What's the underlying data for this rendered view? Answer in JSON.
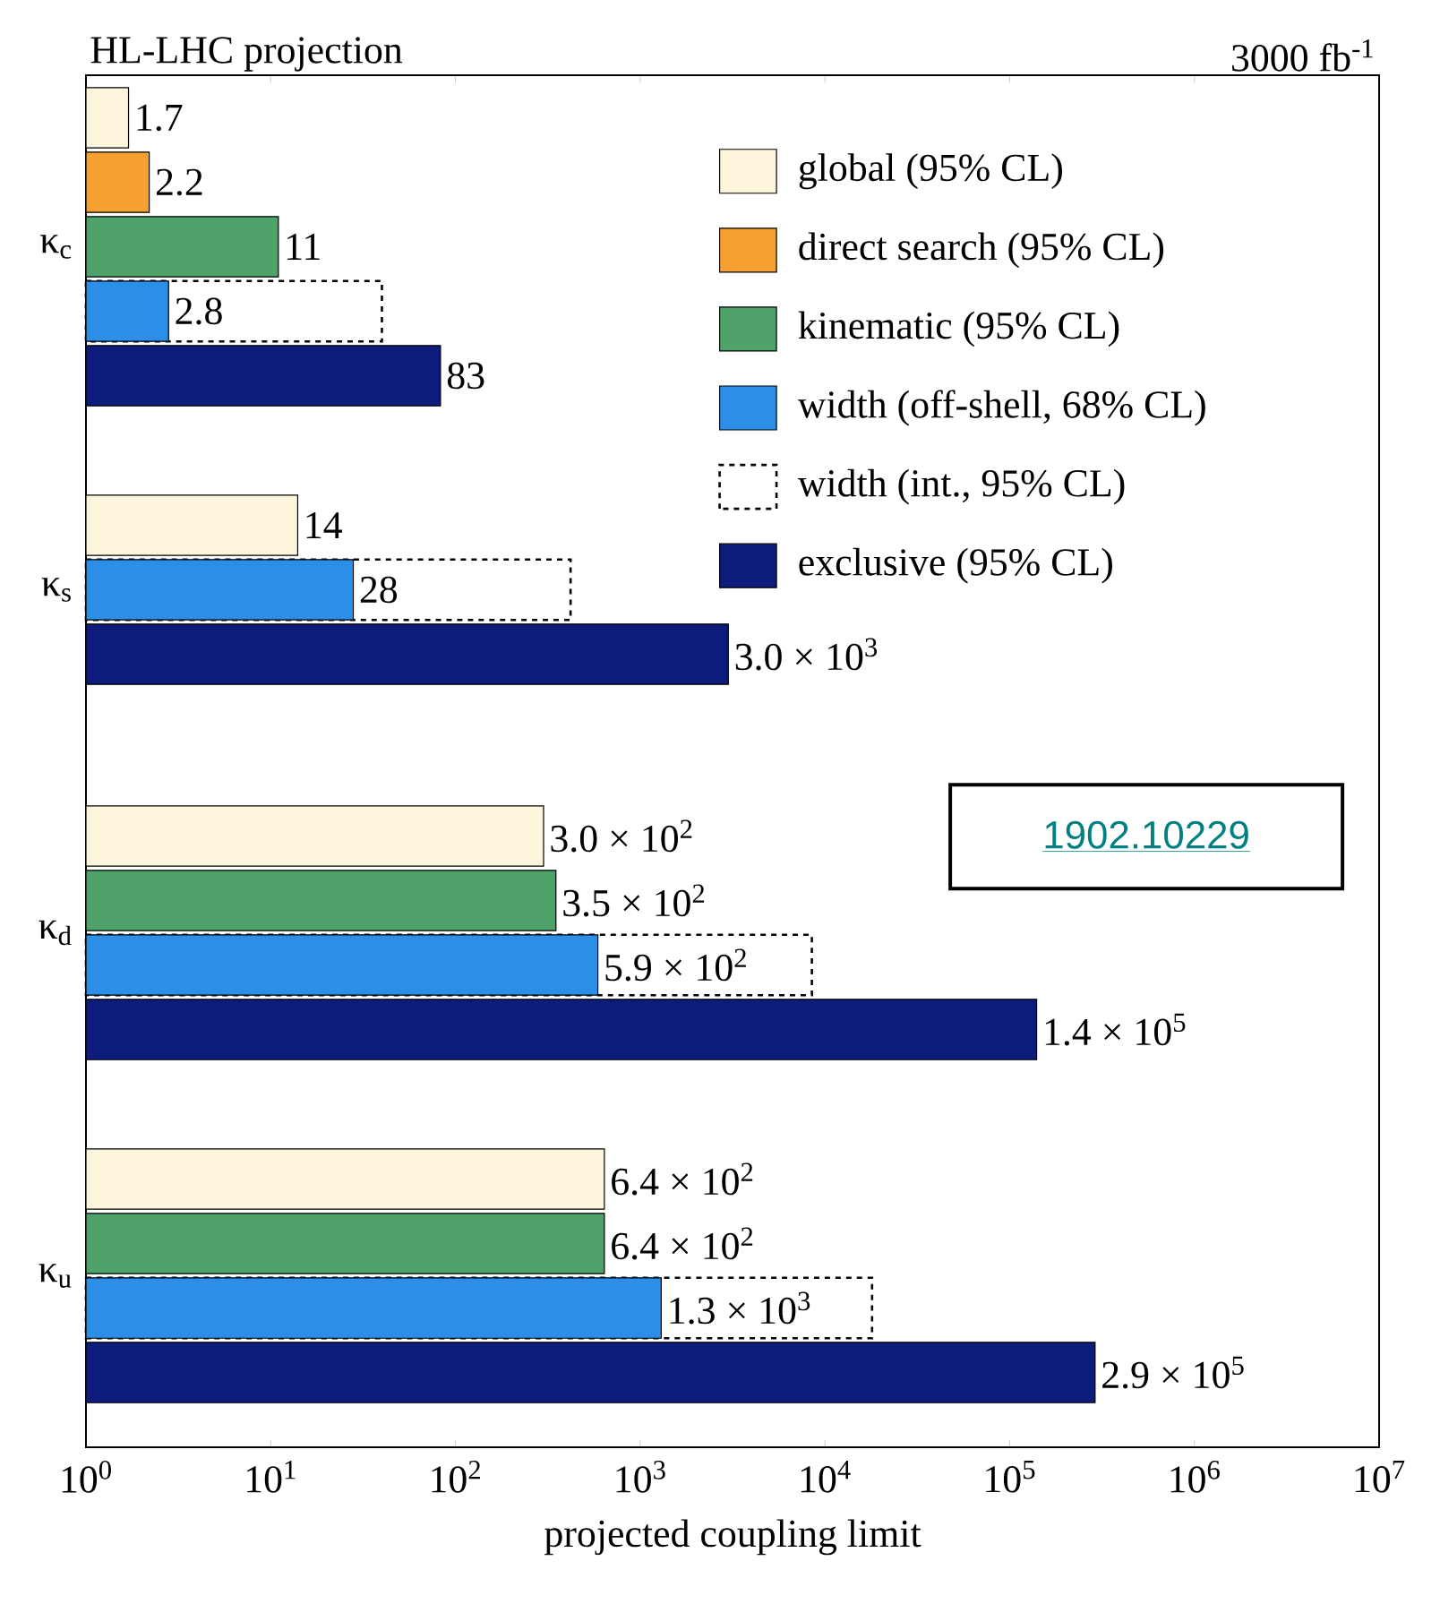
{
  "chart_data": {
    "type": "bar",
    "orientation": "horizontal",
    "title": "HL-LHC projection",
    "subtitle": "3000 fb$^{-1}$",
    "xlabel": "projected coupling limit",
    "categories": [
      "κ$_{c}$",
      "κ$_{s}$",
      "κ$_{d}$",
      "κ$_{u}$"
    ],
    "series": [
      {
        "name": "global (95% CL)",
        "color": "#fdf5dc",
        "values": [
          1.7,
          14,
          300,
          640
        ],
        "value_labels": [
          "1.7",
          "14",
          "3.0 × 10$^{2}$",
          "6.4 × 10$^{2}$"
        ]
      },
      {
        "name": "direct search (95% CL)",
        "color": "#f5a030",
        "values": [
          2.2,
          null,
          null,
          null
        ],
        "value_labels": [
          "2.2",
          null,
          null,
          null
        ]
      },
      {
        "name": "kinematic (95% CL)",
        "color": "#4fa36a",
        "values": [
          11,
          null,
          350,
          640
        ],
        "value_labels": [
          "11",
          null,
          "3.5 × 10$^{2}$",
          "6.4 × 10$^{2}$"
        ]
      },
      {
        "name": "width (off-shell, 68% CL)",
        "color": "#2b8fe8",
        "values": [
          2.8,
          28,
          590,
          1300
        ],
        "value_labels": [
          "2.8",
          "28",
          "5.9 × 10$^{2}$",
          "1.3 × 10$^{3}$"
        ]
      },
      {
        "name": "width (int., 95% CL)",
        "color": "#000000",
        "line_style": "dashed",
        "values": [
          40,
          420,
          8500,
          18000
        ]
      },
      {
        "name": "exclusive (95% CL)",
        "color": "#0d1b7a",
        "values": [
          83,
          3000,
          140000,
          290000
        ],
        "value_labels": [
          "83",
          "3.0 × 10$^{3}$",
          "1.4 × 10$^{5}$",
          "2.9 × 10$^{5}$"
        ]
      }
    ],
    "log": "x",
    "xlim": [
      1,
      10000000
    ],
    "xticks": [
      {
        "value": 1,
        "label": "10$^{0}$"
      },
      {
        "value": 10,
        "label": "10$^{1}$"
      },
      {
        "value": 100,
        "label": "10$^{2}$"
      },
      {
        "value": 1000,
        "label": "10$^{3}$"
      },
      {
        "value": 10000,
        "label": "10$^{4}$"
      },
      {
        "value": 100000,
        "label": "10$^{5}$"
      },
      {
        "value": 1000000,
        "label": "10$^{6}$"
      },
      {
        "value": 10000000,
        "label": "10$^{7}$"
      }
    ],
    "legend": "top right",
    "grid": false,
    "annotations": [
      "1902.10229"
    ]
  }
}
